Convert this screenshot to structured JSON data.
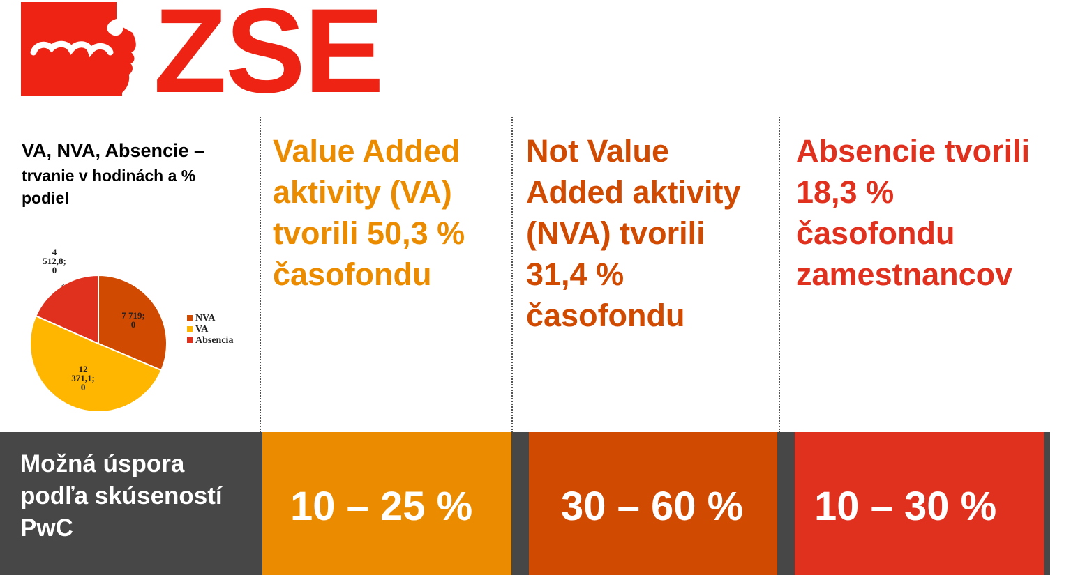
{
  "brand": {
    "logo_text": "ZSE",
    "logo_color": "#EE2313"
  },
  "chart_panel": {
    "title_line1": "VA, NVA, Absencie –",
    "title_line2": "trvanie v hodinách a %",
    "title_line3": "podiel"
  },
  "chart_data": {
    "type": "pie",
    "slices": [
      {
        "name": "NVA",
        "value": 7719.0,
        "label_lines": [
          "7 719;",
          "0"
        ],
        "color": "#D04A02"
      },
      {
        "name": "VA",
        "value": 12371.1,
        "label_lines": [
          "12",
          "371,1;",
          "0"
        ],
        "color": "#FFB600"
      },
      {
        "name": "Absencia",
        "value": 4512.8,
        "label_lines": [
          "4",
          "512,8;",
          "0"
        ],
        "color": "#E0301E"
      }
    ],
    "legend": [
      "NVA",
      "VA",
      "Absencia"
    ],
    "legend_position": "right"
  },
  "columns": {
    "va": {
      "text": "Value Added aktivity (VA) tvorili 50,3 % časofondu",
      "color": "#EB8C00"
    },
    "nva": {
      "text": "Not Value Added aktivity (NVA) tvorili 31,4 % časofondu",
      "color": "#D04A02"
    },
    "abs": {
      "text": "Absencie tvorili 18,3 % časofondu zamestnancov",
      "color": "#E0301E"
    }
  },
  "savings": {
    "label": "Možná úspora podľa skúseností PwC",
    "va": "10 – 25 %",
    "nva": "30 – 60 %",
    "abs": "10 – 30 %",
    "background": "#474747"
  }
}
